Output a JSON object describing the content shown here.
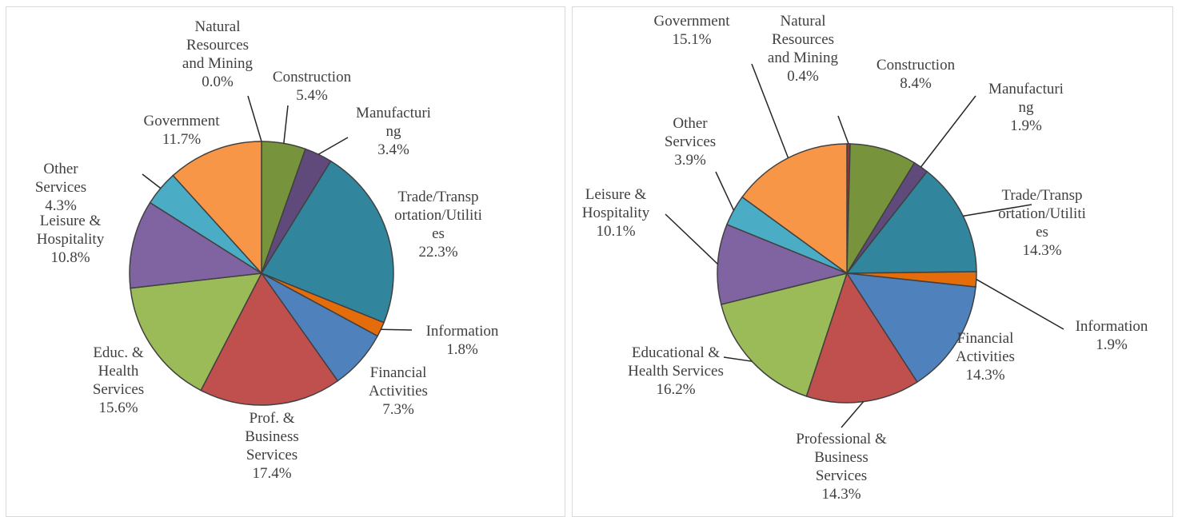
{
  "chart_data": [
    {
      "type": "pie",
      "categories": [
        "Natural Resources and Mining",
        "Construction",
        "Manufacturing",
        "Trade/Transportation/Utilities",
        "Information",
        "Financial Activities",
        "Prof. & Business Services",
        "Educ. & Health Services",
        "Leisure & Hospitality",
        "Other Services",
        "Government"
      ],
      "values": [
        0.0,
        5.4,
        3.4,
        22.3,
        1.8,
        7.3,
        17.4,
        15.6,
        10.8,
        4.3,
        11.7
      ],
      "value_labels": [
        "0.0%",
        "5.4%",
        "3.4%",
        "22.3%",
        "1.8%",
        "7.3%",
        "17.4%",
        "15.6%",
        "10.8%",
        "4.3%",
        "11.7%"
      ],
      "colors": [
        "#953735",
        "#77933c",
        "#604a7b",
        "#31859c",
        "#e46c0a",
        "#4f81bd",
        "#c0504d",
        "#9bbb59",
        "#8064a2",
        "#4bacc6",
        "#f79646"
      ]
    },
    {
      "type": "pie",
      "categories": [
        "Natural Resources and Mining",
        "Construction",
        "Manufacturing",
        "Trade/Transportation/Utilities",
        "Information",
        "Financial Activities",
        "Professional & Business Services",
        "Educational & Health Services",
        "Leisure & Hospitality",
        "Other Services",
        "Government"
      ],
      "values": [
        0.4,
        8.4,
        1.9,
        14.3,
        1.9,
        14.3,
        14.3,
        16.2,
        10.1,
        3.9,
        15.1
      ],
      "value_labels": [
        "0.4%",
        "8.4%",
        "1.9%",
        "14.3%",
        "1.9%",
        "14.3%",
        "14.3%",
        "16.2%",
        "10.1%",
        "3.9%",
        "15.1%"
      ],
      "colors": [
        "#953735",
        "#77933c",
        "#604a7b",
        "#31859c",
        "#e46c0a",
        "#4f81bd",
        "#c0504d",
        "#9bbb59",
        "#8064a2",
        "#4bacc6",
        "#f79646"
      ]
    }
  ]
}
